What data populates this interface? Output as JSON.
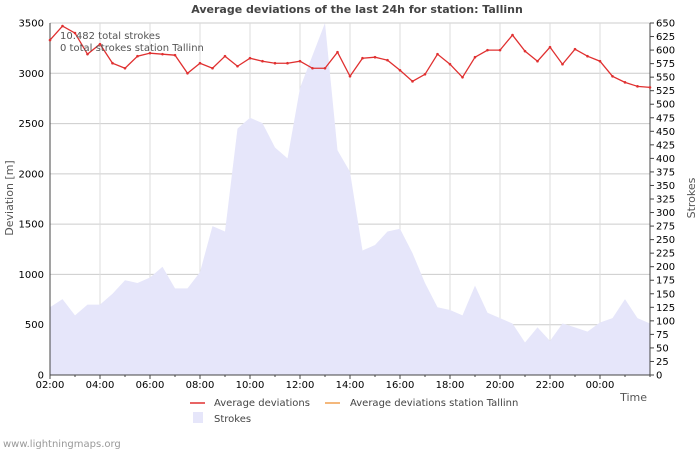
{
  "chart_data": {
    "type": "line",
    "title": "Average deviations of the last 24h for station: Tallinn",
    "xlabel": "Time",
    "ylabel_left": "Deviation  [m]",
    "ylabel_right": "Strokes",
    "ylim_left": [
      0,
      3500
    ],
    "ylim_right": [
      0,
      650
    ],
    "x_ticks": [
      "02:00",
      "04:00",
      "06:00",
      "08:00",
      "10:00",
      "12:00",
      "14:00",
      "16:00",
      "18:00",
      "20:00",
      "22:00",
      "00:00"
    ],
    "y_left_ticks": [
      0,
      500,
      1000,
      1500,
      2000,
      2500,
      3000,
      3500
    ],
    "y_right_ticks": [
      0,
      25,
      50,
      75,
      100,
      125,
      150,
      175,
      200,
      225,
      250,
      275,
      300,
      325,
      350,
      375,
      400,
      425,
      450,
      475,
      500,
      525,
      550,
      575,
      600,
      625,
      650
    ],
    "x_hours": [
      0,
      0.5,
      1,
      1.5,
      2,
      2.5,
      3,
      3.5,
      4,
      4.5,
      5,
      5.5,
      6,
      6.5,
      7,
      7.5,
      8,
      8.5,
      9,
      9.5,
      10,
      10.5,
      11,
      11.5,
      12,
      12.5,
      13,
      13.5,
      14,
      14.5,
      15,
      15.5,
      16,
      16.5,
      17,
      17.5,
      18,
      18.5,
      19,
      19.5,
      20,
      20.5,
      21,
      21.5,
      22,
      22.5,
      23,
      23.5,
      24
    ],
    "series": [
      {
        "name": "Average deviations",
        "axis": "left",
        "color": "#e03030",
        "values": [
          3330,
          3470,
          3400,
          3190,
          3290,
          3100,
          3050,
          3170,
          3200,
          3190,
          3180,
          3000,
          3100,
          3050,
          3170,
          3070,
          3150,
          3120,
          3100,
          3100,
          3120,
          3050,
          3050,
          3210,
          2970,
          3150,
          3160,
          3130,
          3030,
          2920,
          2990,
          3190,
          3090,
          2960,
          3160,
          3230,
          3230,
          3380,
          3220,
          3120,
          3260,
          3090,
          3240,
          3170,
          3120,
          2970,
          2910,
          2870,
          2860
        ]
      },
      {
        "name": "Average deviations station Tallinn",
        "axis": "left",
        "color": "#f0a050",
        "values": []
      },
      {
        "name": "Strokes",
        "axis": "right",
        "color": "#e6e6fa",
        "values": [
          125,
          140,
          110,
          130,
          130,
          150,
          175,
          170,
          180,
          200,
          160,
          160,
          190,
          275,
          265,
          455,
          475,
          465,
          420,
          400,
          530,
          590,
          650,
          415,
          375,
          230,
          240,
          265,
          270,
          225,
          170,
          125,
          120,
          110,
          165,
          115,
          105,
          95,
          60,
          88,
          63,
          95,
          88,
          80,
          97,
          105,
          140,
          105,
          95
        ]
      }
    ]
  },
  "annotations": {
    "total_strokes": "10.482 total strokes",
    "station_strokes": "0 total strokes station Tallinn"
  },
  "legend": {
    "avg": "Average deviations",
    "avg_station": "Average deviations station Tallinn",
    "strokes": "Strokes"
  },
  "footer": {
    "credit": "www.lightningmaps.org"
  }
}
